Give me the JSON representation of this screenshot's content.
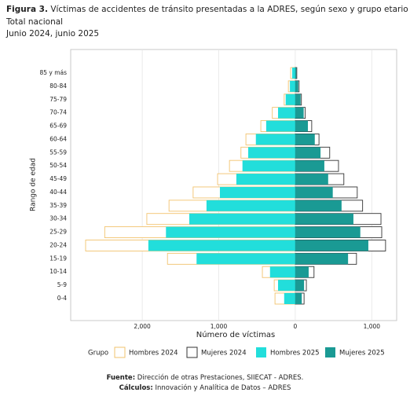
{
  "chart_data": {
    "type": "pyramid",
    "title_bold": "Figura 3.",
    "title": "Víctimas de accidentes de tránsito presentadas a la ADRES, según sexo y grupo etario",
    "subtitle": [
      "Total nacional",
      "Junio 2024, junio 2025"
    ],
    "xlabel": "Número de víctimas",
    "ylabel": "Rango de edad",
    "legend_title": "Grupo",
    "categories": [
      "0-4",
      "5-9",
      "10-14",
      "15-19",
      "20-24",
      "25-29",
      "30-34",
      "35-39",
      "40-44",
      "45-49",
      "50-54",
      "55-59",
      "60-64",
      "65-69",
      "70-74",
      "75-79",
      "80-84",
      "85 y más"
    ],
    "series": [
      {
        "name": "Hombres 2024",
        "color": "#f2c36e",
        "style": "outline",
        "values": [
          -265,
          -275,
          -430,
          -1670,
          -2740,
          -2490,
          -1940,
          -1650,
          -1335,
          -1015,
          -860,
          -710,
          -645,
          -450,
          -300,
          -145,
          -90,
          -60
        ]
      },
      {
        "name": "Mujeres 2024",
        "color": "#333333",
        "style": "outline",
        "values": [
          115,
          145,
          245,
          800,
          1180,
          1130,
          1120,
          880,
          810,
          635,
          565,
          450,
          310,
          215,
          130,
          80,
          50,
          20
        ]
      },
      {
        "name": "Hombres 2025",
        "color": "#22dedb",
        "style": "filled",
        "values": [
          -145,
          -225,
          -330,
          -1290,
          -1920,
          -1690,
          -1385,
          -1160,
          -985,
          -770,
          -690,
          -615,
          -515,
          -380,
          -225,
          -125,
          -70,
          -40
        ]
      },
      {
        "name": "Mujeres 2025",
        "color": "#1a9a94",
        "style": "filled",
        "values": [
          85,
          115,
          175,
          690,
          955,
          850,
          760,
          605,
          490,
          430,
          380,
          330,
          255,
          165,
          110,
          70,
          40,
          15
        ]
      }
    ],
    "xlim": [
      -2935,
      1325
    ],
    "xticks": [
      {
        "value": -2000,
        "label": "2,000"
      },
      {
        "value": -1000,
        "label": "1,000"
      },
      0,
      {
        "value": 1000,
        "label": "1,000"
      }
    ],
    "grid": true,
    "footer": [
      {
        "bold": "Fuente:",
        "text": "Dirección de otras Prestaciones, SIIECAT - ADRES."
      },
      {
        "bold": "Cálculos:",
        "text": "Innovación y Analítica de Datos – ADRES"
      }
    ]
  }
}
